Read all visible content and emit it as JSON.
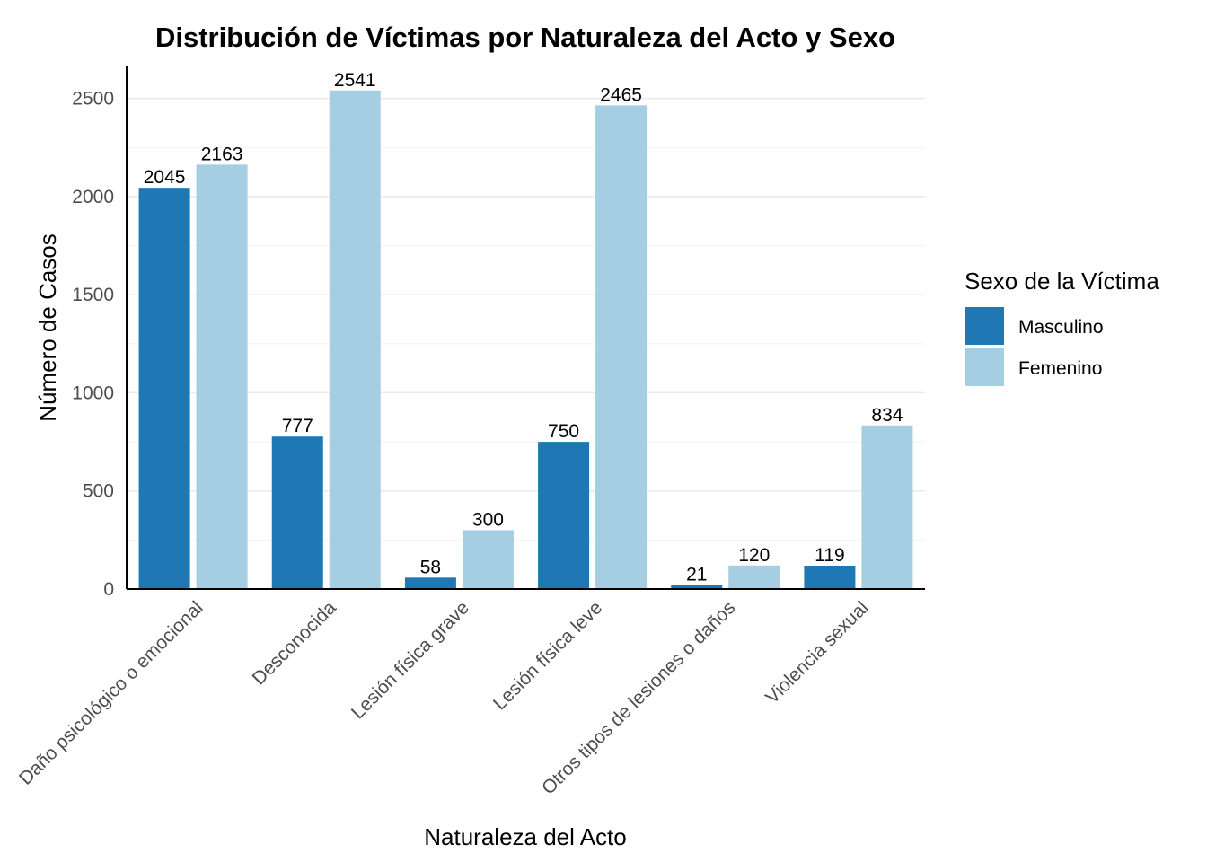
{
  "chart_data": {
    "type": "bar",
    "title": "Distribución de Víctimas por Naturaleza del Acto y Sexo",
    "xlabel": "Naturaleza del Acto",
    "ylabel": "Número de Casos",
    "categories": [
      "Daño psicológico o emocional",
      "Desconocida",
      "Lesión física grave",
      "Lesión física leve",
      "Otros tipos de lesiones o daños",
      "Violencia sexual"
    ],
    "series": [
      {
        "name": "Masculino",
        "color": "#1f78b4",
        "values": [
          2045,
          777,
          58,
          750,
          21,
          119
        ]
      },
      {
        "name": "Femenino",
        "color": "#a6cee3",
        "values": [
          2163,
          2541,
          300,
          2465,
          120,
          834
        ]
      }
    ],
    "yticks": [
      0,
      500,
      1000,
      1500,
      2000,
      2500
    ],
    "ylim": [
      0,
      2668
    ],
    "grid": true,
    "legend": {
      "title": "Sexo de la Víctima",
      "position": "right"
    }
  }
}
